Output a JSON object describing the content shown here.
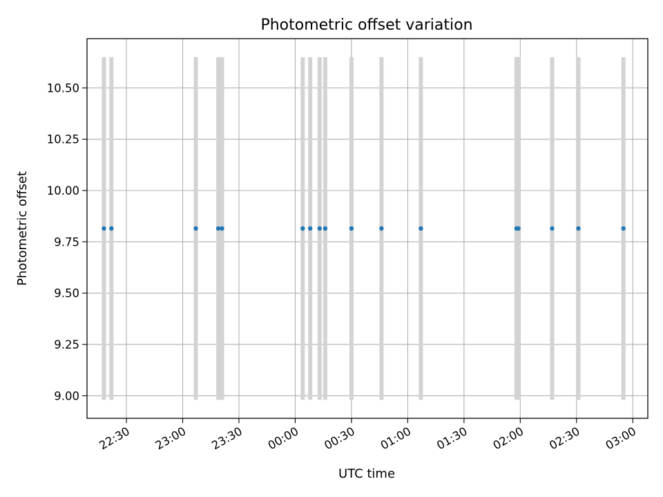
{
  "chart_data": {
    "type": "scatter",
    "title": "Photometric offset variation",
    "xlabel": "UTC time",
    "ylabel": "Photometric offset",
    "x_tick_labels": [
      "22:30",
      "23:00",
      "23:30",
      "00:00",
      "00:30",
      "01:00",
      "01:30",
      "02:00",
      "02:30",
      "03:00"
    ],
    "y_tick_labels": [
      "9.00",
      "9.25",
      "9.50",
      "9.75",
      "10.00",
      "10.25",
      "10.50"
    ],
    "xlim": [
      "22:09",
      "03:08"
    ],
    "ylim": [
      8.89,
      10.74
    ],
    "grid": true,
    "point_color": "#1f77b4",
    "bar_color": "#d3d3d3",
    "bar_range": [
      8.98,
      10.65
    ],
    "points": [
      {
        "x": "22:18",
        "y": 9.815
      },
      {
        "x": "22:22",
        "y": 9.815
      },
      {
        "x": "23:07",
        "y": 9.815
      },
      {
        "x": "23:19",
        "y": 9.815
      },
      {
        "x": "23:21",
        "y": 9.815
      },
      {
        "x": "00:04",
        "y": 9.815
      },
      {
        "x": "00:08",
        "y": 9.815
      },
      {
        "x": "00:13",
        "y": 9.815
      },
      {
        "x": "00:16",
        "y": 9.815
      },
      {
        "x": "00:30",
        "y": 9.815
      },
      {
        "x": "00:46",
        "y": 9.815
      },
      {
        "x": "01:07",
        "y": 9.815
      },
      {
        "x": "01:58",
        "y": 9.815
      },
      {
        "x": "01:59",
        "y": 9.815
      },
      {
        "x": "02:17",
        "y": 9.815
      },
      {
        "x": "02:31",
        "y": 9.815
      },
      {
        "x": "02:55",
        "y": 9.815
      }
    ]
  }
}
